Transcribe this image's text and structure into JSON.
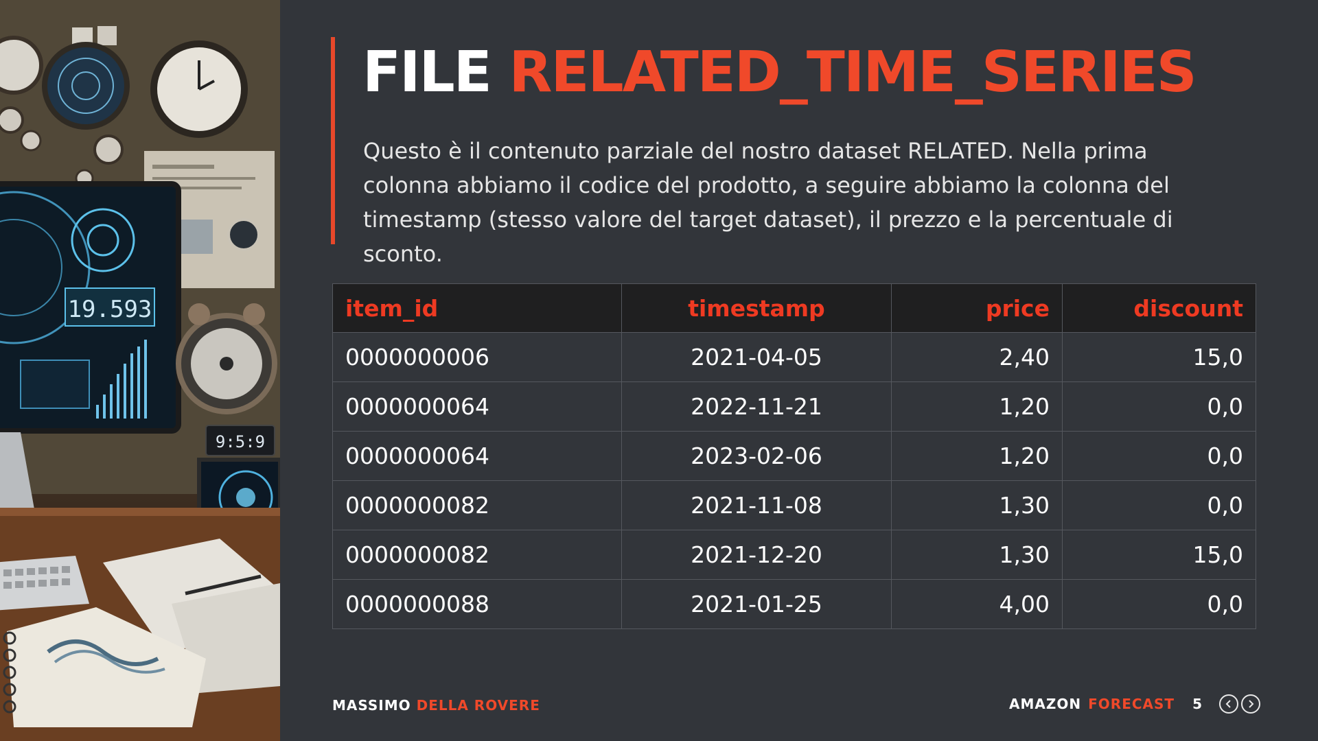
{
  "slide": {
    "title_white": "FILE",
    "title_orange": "RELATED_TIME_SERIES",
    "description": "Questo è il contenuto parziale del nostro dataset RELATED. Nella prima colonna abbiamo il codice del prodotto, a seguire abbiamo la colonna del timestamp (stesso valore del target dataset), il prezzo e la percentuale di sconto."
  },
  "illustration": {
    "screen_readout": "19.593",
    "clock_readout": "9:5:9"
  },
  "table": {
    "headers": {
      "item_id": "item_id",
      "timestamp": "timestamp",
      "price": "price",
      "discount": "discount"
    },
    "rows": [
      {
        "item_id": "0000000006",
        "timestamp": "2021-04-05",
        "price": "2,40",
        "discount": "15,0"
      },
      {
        "item_id": "0000000064",
        "timestamp": "2022-11-21",
        "price": "1,20",
        "discount": "0,0"
      },
      {
        "item_id": "0000000064",
        "timestamp": "2023-02-06",
        "price": "1,20",
        "discount": "0,0"
      },
      {
        "item_id": "0000000082",
        "timestamp": "2021-11-08",
        "price": "1,30",
        "discount": "0,0"
      },
      {
        "item_id": "0000000082",
        "timestamp": "2021-12-20",
        "price": "1,30",
        "discount": "15,0"
      },
      {
        "item_id": "0000000088",
        "timestamp": "2021-01-25",
        "price": "4,00",
        "discount": "0,0"
      }
    ]
  },
  "footer": {
    "author_first": "MASSIMO",
    "author_last": "DELLA ROVERE",
    "product_first": "AMAZON",
    "product_last": "FORECAST",
    "page_number": "5"
  },
  "icons": {
    "prev": "chevron-left-icon",
    "next": "chevron-right-icon"
  },
  "colors": {
    "background": "#32353a",
    "accent": "#f0492a",
    "header_bg": "#1f1f20"
  }
}
